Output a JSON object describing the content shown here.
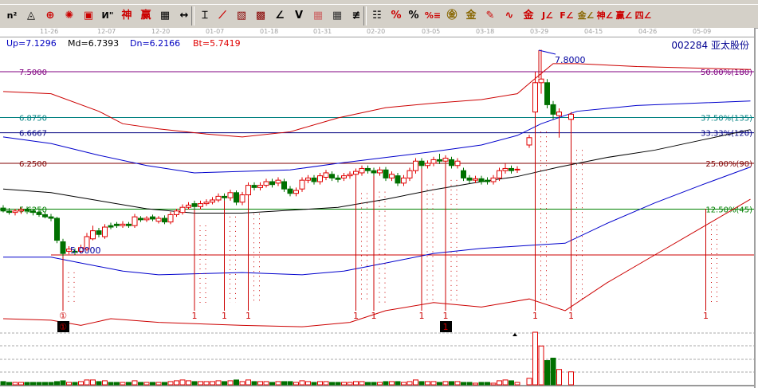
{
  "toolbar": {
    "icons": [
      {
        "name": "fibonacci-n2-icon",
        "glyph": "n²",
        "color": "#000"
      },
      {
        "name": "triangle-tool-icon",
        "glyph": "◬",
        "color": "#000"
      },
      {
        "name": "circle-crosshair-icon",
        "glyph": "⊕",
        "color": "#c00"
      },
      {
        "name": "starburst-icon",
        "glyph": "✺",
        "color": "#c00"
      },
      {
        "name": "square-target-icon",
        "glyph": "▣",
        "color": "#c00"
      },
      {
        "name": "gann-lines-icon",
        "glyph": "И\"",
        "color": "#000"
      },
      {
        "name": "shen-icon",
        "glyph": "神",
        "color": "#c00"
      },
      {
        "name": "ying-icon",
        "glyph": "赢",
        "color": "#c00"
      },
      {
        "name": "grid-ruler-icon",
        "glyph": "▦",
        "color": "#000"
      },
      {
        "name": "horizontal-measure-icon",
        "glyph": "↔",
        "color": "#000"
      },
      {
        "name": "box-tool-icon",
        "glyph": "⌶",
        "color": "#000"
      },
      {
        "name": "fan-lines-icon",
        "glyph": "⟋",
        "color": "#c00"
      },
      {
        "name": "gann-box-icon",
        "glyph": "▧",
        "color": "#800"
      },
      {
        "name": "gann-square-icon",
        "glyph": "▩",
        "color": "#800"
      },
      {
        "name": "angle-icon",
        "glyph": "∠",
        "color": "#000"
      },
      {
        "name": "v-line-icon",
        "glyph": "V",
        "color": "#000"
      },
      {
        "name": "grid-red-icon",
        "glyph": "▦",
        "color": "#c66"
      },
      {
        "name": "grid-black-icon",
        "glyph": "▦",
        "color": "#333"
      },
      {
        "name": "parallel-lines-icon",
        "glyph": "≢",
        "color": "#000"
      },
      {
        "name": "table-icon",
        "glyph": "☷",
        "color": "#000"
      },
      {
        "name": "percent-line-icon",
        "glyph": "%",
        "color": "#c00"
      },
      {
        "name": "percent-icon",
        "glyph": "%",
        "color": "#000"
      },
      {
        "name": "percent-levels-icon",
        "glyph": "%≡",
        "color": "#c00"
      },
      {
        "name": "gold-circle-icon",
        "glyph": "㊎",
        "color": "#886600"
      },
      {
        "name": "gold-levels-icon",
        "glyph": "金",
        "color": "#886600"
      },
      {
        "name": "pen-icon",
        "glyph": "✎",
        "color": "#c00"
      },
      {
        "name": "sine-wave-icon",
        "glyph": "∿",
        "color": "#c00"
      },
      {
        "name": "gold-line-icon",
        "glyph": "金",
        "color": "#c00"
      },
      {
        "name": "j-fan-icon",
        "glyph": "J∠",
        "color": "#c00"
      },
      {
        "name": "f-fan-icon",
        "glyph": "F∠",
        "color": "#c00"
      },
      {
        "name": "gold-fan-icon",
        "glyph": "金∠",
        "color": "#886600"
      },
      {
        "name": "shen-fan-icon",
        "glyph": "神∠",
        "color": "#c00"
      },
      {
        "name": "ying-fan-icon",
        "glyph": "赢∠",
        "color": "#c00"
      },
      {
        "name": "si-fan-icon",
        "glyph": "四∠",
        "color": "#c00"
      }
    ]
  },
  "date_axis": [
    "11-26",
    "12-07",
    "12-20",
    "01-07",
    "01-18",
    "01-31",
    "02-20",
    "03-05",
    "03-18",
    "03-29",
    "04-15",
    "04-26",
    "05-09"
  ],
  "info": {
    "up": "Up=7.1296",
    "md": "Md=6.7393",
    "dn": "Dn=6.2166",
    "bt": "Bt=5.7419",
    "stock": "002284  亚太股份"
  },
  "colors": {
    "up": "#e00000",
    "down": "#007000",
    "upper_band": "#cc0000",
    "mid_band": "#0000cc",
    "ma": "#000000"
  },
  "chart_data": {
    "type": "candlestick",
    "price_levels": [
      {
        "price": "7.5000",
        "value": 7.5,
        "label": "50.00%(180)",
        "color": "#800080"
      },
      {
        "price": "6.8750",
        "value": 6.875,
        "label": "37.50%(135)",
        "color": "#008080"
      },
      {
        "price": "6.6667",
        "value": 6.6667,
        "label": "33.33%(120)",
        "color": "#000080"
      },
      {
        "price": "6.2500",
        "value": 6.25,
        "label": "25.00%(90)",
        "color": "#800000"
      },
      {
        "price": "5.6250",
        "value": 5.625,
        "label": "12.50%(45)",
        "color": "#008000"
      },
      {
        "price": "5.0000",
        "value": 5.0,
        "label": "",
        "color": "#cc0000"
      }
    ],
    "high_mark": "7.8000",
    "low_mark": "5.0000",
    "candles_ohlc": [
      [
        5.64,
        5.68,
        5.58,
        5.6
      ],
      [
        5.6,
        5.64,
        5.55,
        5.58
      ],
      [
        5.58,
        5.63,
        5.54,
        5.6
      ],
      [
        5.6,
        5.65,
        5.56,
        5.62
      ],
      [
        5.62,
        5.66,
        5.56,
        5.6
      ],
      [
        5.6,
        5.63,
        5.54,
        5.58
      ],
      [
        5.58,
        5.62,
        5.52,
        5.55
      ],
      [
        5.55,
        5.59,
        5.5,
        5.52
      ],
      [
        5.52,
        5.56,
        5.46,
        5.5
      ],
      [
        5.5,
        5.52,
        5.16,
        5.2
      ],
      [
        5.18,
        5.22,
        4.98,
        5.02
      ],
      [
        5.05,
        5.12,
        5.01,
        5.08
      ],
      [
        5.05,
        5.09,
        5.0,
        5.04
      ],
      [
        5.05,
        5.14,
        5.02,
        5.1
      ],
      [
        5.08,
        5.3,
        5.05,
        5.25
      ],
      [
        5.22,
        5.4,
        5.2,
        5.33
      ],
      [
        5.33,
        5.37,
        5.24,
        5.28
      ],
      [
        5.25,
        5.42,
        5.22,
        5.38
      ],
      [
        5.4,
        5.44,
        5.35,
        5.38
      ],
      [
        5.42,
        5.45,
        5.37,
        5.4
      ],
      [
        5.4,
        5.46,
        5.37,
        5.42
      ],
      [
        5.42,
        5.45,
        5.37,
        5.4
      ],
      [
        5.4,
        5.56,
        5.37,
        5.52
      ],
      [
        5.5,
        5.53,
        5.45,
        5.48
      ],
      [
        5.48,
        5.53,
        5.45,
        5.5
      ],
      [
        5.52,
        5.55,
        5.46,
        5.49
      ],
      [
        5.46,
        5.53,
        5.43,
        5.5
      ],
      [
        5.5,
        5.54,
        5.42,
        5.45
      ],
      [
        5.45,
        5.59,
        5.42,
        5.55
      ],
      [
        5.55,
        5.63,
        5.52,
        5.6
      ],
      [
        5.58,
        5.69,
        5.55,
        5.65
      ],
      [
        5.65,
        5.72,
        5.62,
        5.68
      ],
      [
        5.7,
        5.74,
        5.62,
        5.66
      ],
      [
        5.66,
        5.74,
        5.62,
        5.7
      ],
      [
        5.7,
        5.76,
        5.67,
        5.72
      ],
      [
        5.72,
        5.79,
        5.69,
        5.75
      ],
      [
        5.75,
        5.84,
        5.72,
        5.8
      ],
      [
        5.8,
        5.84,
        5.74,
        5.78
      ],
      [
        5.78,
        5.89,
        5.74,
        5.85
      ],
      [
        5.85,
        5.88,
        5.68,
        5.72
      ],
      [
        5.72,
        5.86,
        5.68,
        5.82
      ],
      [
        5.82,
        5.99,
        5.78,
        5.95
      ],
      [
        5.95,
        5.99,
        5.88,
        5.92
      ],
      [
        5.92,
        5.99,
        5.88,
        5.95
      ],
      [
        5.95,
        6.04,
        5.92,
        6.0
      ],
      [
        6.0,
        6.04,
        5.92,
        5.96
      ],
      [
        5.98,
        6.06,
        5.94,
        6.02
      ],
      [
        6.0,
        6.04,
        5.86,
        5.9
      ],
      [
        5.9,
        5.94,
        5.8,
        5.84
      ],
      [
        5.84,
        5.92,
        5.8,
        5.88
      ],
      [
        5.9,
        6.06,
        5.86,
        6.02
      ],
      [
        6.02,
        6.09,
        5.98,
        6.05
      ],
      [
        6.05,
        6.09,
        5.96,
        6.0
      ],
      [
        6.0,
        6.12,
        5.96,
        6.08
      ],
      [
        6.06,
        6.16,
        6.02,
        6.12
      ],
      [
        6.1,
        6.14,
        6.01,
        6.05
      ],
      [
        6.05,
        6.09,
        5.99,
        6.03
      ],
      [
        6.05,
        6.12,
        6.01,
        6.08
      ],
      [
        6.08,
        6.14,
        6.04,
        6.1
      ],
      [
        6.1,
        6.18,
        6.06,
        6.14
      ],
      [
        6.12,
        6.22,
        6.08,
        6.18
      ],
      [
        6.18,
        6.22,
        6.11,
        6.15
      ],
      [
        6.15,
        6.19,
        6.08,
        6.12
      ],
      [
        6.12,
        6.2,
        6.08,
        6.16
      ],
      [
        6.16,
        6.2,
        6.01,
        6.05
      ],
      [
        6.05,
        6.14,
        6.01,
        6.1
      ],
      [
        6.08,
        6.12,
        5.94,
        5.98
      ],
      [
        5.98,
        6.09,
        5.94,
        6.05
      ],
      [
        6.05,
        6.19,
        6.01,
        6.15
      ],
      [
        6.15,
        6.32,
        6.11,
        6.28
      ],
      [
        6.28,
        6.32,
        6.18,
        6.22
      ],
      [
        6.22,
        6.29,
        6.18,
        6.25
      ],
      [
        6.25,
        6.34,
        6.21,
        6.3
      ],
      [
        6.3,
        6.38,
        6.24,
        6.28
      ],
      [
        6.28,
        6.36,
        6.24,
        6.32
      ],
      [
        6.3,
        6.34,
        6.18,
        6.22
      ],
      [
        6.22,
        6.32,
        6.18,
        6.28
      ],
      [
        6.15,
        6.19,
        6.01,
        6.05
      ],
      [
        6.05,
        6.09,
        5.98,
        6.02
      ],
      [
        6.02,
        6.08,
        5.98,
        6.04
      ],
      [
        6.04,
        6.08,
        5.96,
        6.0
      ],
      [
        6.02,
        6.06,
        5.96,
        6.0
      ],
      [
        6.0,
        6.09,
        5.96,
        6.05
      ],
      [
        6.05,
        6.19,
        6.01,
        6.15
      ],
      [
        6.15,
        6.25,
        6.11,
        6.18
      ],
      [
        6.18,
        6.22,
        6.11,
        6.15
      ],
      [
        6.16,
        6.21,
        6.12,
        6.17
      ],
      null,
      [
        6.5,
        6.64,
        6.46,
        6.6
      ],
      [
        6.95,
        7.5,
        6.9,
        7.35
      ],
      [
        7.35,
        7.8,
        7.2,
        7.4
      ],
      [
        7.35,
        7.4,
        7.0,
        7.05
      ],
      [
        7.05,
        7.1,
        6.85,
        6.92
      ],
      [
        6.9,
        7.0,
        6.6,
        6.95
      ],
      null,
      [
        6.85,
        6.95,
        6.65,
        6.92
      ]
    ],
    "volume": [
      4,
      3,
      3,
      3,
      3,
      3,
      3,
      3,
      3,
      4,
      5,
      3,
      3,
      4,
      6,
      6,
      4,
      5,
      3,
      3,
      3,
      3,
      5,
      3,
      3,
      3,
      3,
      3,
      4,
      5,
      6,
      5,
      4,
      4,
      4,
      4,
      5,
      4,
      5,
      6,
      4,
      6,
      4,
      4,
      4,
      3,
      4,
      4,
      4,
      3,
      5,
      4,
      3,
      4,
      4,
      3,
      3,
      3,
      3,
      4,
      4,
      3,
      3,
      3,
      4,
      4,
      4,
      3,
      4,
      6,
      4,
      4,
      4,
      3,
      4,
      4,
      4,
      3,
      3,
      2,
      3,
      3,
      2,
      5,
      6,
      5,
      3,
      0,
      8,
      65,
      48,
      30,
      33,
      19,
      0,
      16
    ],
    "bands": {
      "upper_red": [
        [
          0,
          7.23
        ],
        [
          8,
          7.2
        ],
        [
          16,
          6.96
        ],
        [
          20,
          6.79
        ],
        [
          26,
          6.72
        ],
        [
          34,
          6.65
        ],
        [
          40,
          6.61
        ],
        [
          48,
          6.68
        ],
        [
          56,
          6.87
        ],
        [
          64,
          7.01
        ],
        [
          72,
          7.07
        ],
        [
          80,
          7.12
        ],
        [
          86,
          7.2
        ],
        [
          88,
          7.34
        ],
        [
          92,
          7.61
        ],
        [
          96,
          7.61
        ],
        [
          106,
          7.57
        ],
        [
          125,
          7.53
        ]
      ],
      "upper_blue": [
        [
          0,
          6.61
        ],
        [
          8,
          6.52
        ],
        [
          16,
          6.36
        ],
        [
          24,
          6.22
        ],
        [
          32,
          6.12
        ],
        [
          40,
          6.14
        ],
        [
          48,
          6.16
        ],
        [
          56,
          6.25
        ],
        [
          64,
          6.33
        ],
        [
          72,
          6.41
        ],
        [
          80,
          6.5
        ],
        [
          86,
          6.63
        ],
        [
          90,
          6.79
        ],
        [
          96,
          6.96
        ],
        [
          106,
          7.04
        ],
        [
          125,
          7.1
        ]
      ],
      "ma": [
        [
          0,
          5.9
        ],
        [
          8,
          5.85
        ],
        [
          16,
          5.74
        ],
        [
          24,
          5.63
        ],
        [
          32,
          5.57
        ],
        [
          40,
          5.57
        ],
        [
          48,
          5.61
        ],
        [
          56,
          5.65
        ],
        [
          64,
          5.76
        ],
        [
          72,
          5.89
        ],
        [
          80,
          6.0
        ],
        [
          86,
          6.07
        ],
        [
          93,
          6.2
        ],
        [
          101,
          6.33
        ],
        [
          109,
          6.43
        ],
        [
          117,
          6.57
        ],
        [
          125,
          6.71
        ]
      ],
      "lower_blue": [
        [
          0,
          4.97
        ],
        [
          8,
          4.97
        ],
        [
          13,
          4.89
        ],
        [
          20,
          4.78
        ],
        [
          26,
          4.73
        ],
        [
          40,
          4.76
        ],
        [
          50,
          4.73
        ],
        [
          57,
          4.78
        ],
        [
          64,
          4.89
        ],
        [
          72,
          5.02
        ],
        [
          80,
          5.09
        ],
        [
          88,
          5.13
        ],
        [
          94,
          5.16
        ],
        [
          101,
          5.43
        ],
        [
          109,
          5.71
        ],
        [
          117,
          5.96
        ],
        [
          125,
          6.2
        ]
      ],
      "lower_red": [
        [
          0,
          4.13
        ],
        [
          8,
          4.11
        ],
        [
          13,
          4.04
        ],
        [
          18,
          4.13
        ],
        [
          26,
          4.08
        ],
        [
          40,
          4.04
        ],
        [
          50,
          4.02
        ],
        [
          58,
          4.08
        ],
        [
          64,
          4.24
        ],
        [
          72,
          4.35
        ],
        [
          80,
          4.29
        ],
        [
          88,
          4.4
        ],
        [
          94,
          4.24
        ],
        [
          101,
          4.62
        ],
        [
          109,
          5.0
        ],
        [
          117,
          5.38
        ],
        [
          125,
          5.76
        ]
      ]
    },
    "signals": [
      {
        "index": 10,
        "label": "①"
      },
      {
        "index": 32,
        "label": "1"
      },
      {
        "index": 37,
        "label": "1"
      },
      {
        "index": 41,
        "label": "1"
      },
      {
        "index": 59,
        "label": "1"
      },
      {
        "index": 62,
        "label": "1"
      },
      {
        "index": 70,
        "label": "1"
      },
      {
        "index": 74,
        "label": "1"
      },
      {
        "index": 89,
        "label": "1"
      },
      {
        "index": 95,
        "label": "1"
      },
      {
        "index": 117,
        "label": "1"
      }
    ],
    "boxed_signals": [
      {
        "index": 10,
        "label": "①"
      },
      {
        "index": 74,
        "label": "1"
      }
    ]
  }
}
